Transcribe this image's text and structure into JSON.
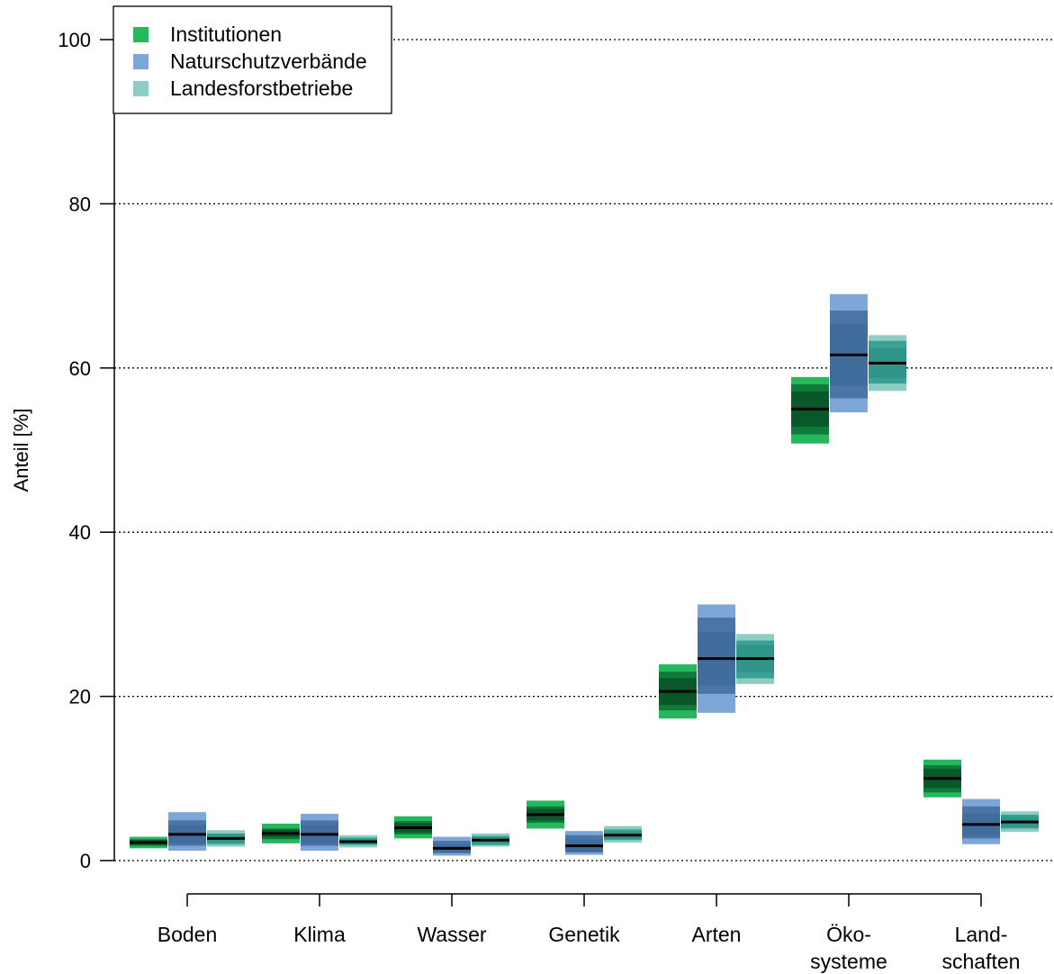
{
  "chart_data": {
    "type": "box",
    "ylabel": "Anteil [%]",
    "ylim": [
      0,
      100
    ],
    "yticks": [
      0,
      20,
      40,
      60,
      80,
      100
    ],
    "grid": "horizontal dotted",
    "legend_position": "top-left",
    "categories": [
      [
        "Boden"
      ],
      [
        "Klima"
      ],
      [
        "Wasser"
      ],
      [
        "Genetik"
      ],
      [
        "Arten"
      ],
      [
        "Öko-",
        "systeme"
      ],
      [
        "Land-",
        "schaften"
      ]
    ],
    "series": [
      {
        "name": "Institutionen",
        "color_outer": "#25b85c",
        "color_inner": "#0f7a3a",
        "color_core": "#063d1c",
        "boxes": [
          {
            "min": 1.5,
            "q1": 1.8,
            "median": 2.2,
            "q3": 2.6,
            "max": 2.9
          },
          {
            "min": 2.1,
            "q1": 2.6,
            "median": 3.3,
            "q3": 3.9,
            "max": 4.5
          },
          {
            "min": 2.7,
            "q1": 3.2,
            "median": 4.0,
            "q3": 4.8,
            "max": 5.4
          },
          {
            "min": 3.9,
            "q1": 4.6,
            "median": 5.6,
            "q3": 6.6,
            "max": 7.3
          },
          {
            "min": 17.3,
            "q1": 18.3,
            "median": 20.6,
            "q3": 23.0,
            "max": 23.9
          },
          {
            "min": 50.8,
            "q1": 51.9,
            "median": 55.0,
            "q3": 58.0,
            "max": 58.9
          },
          {
            "min": 7.7,
            "q1": 8.3,
            "median": 10.0,
            "q3": 11.6,
            "max": 12.3
          }
        ]
      },
      {
        "name": "Naturschutzverbände",
        "color_outer": "#7ea6d6",
        "color_inner": "#4a75a6",
        "color_core": "#3a6694",
        "boxes": [
          {
            "min": 1.2,
            "q1": 1.8,
            "median": 3.2,
            "q3": 4.9,
            "max": 5.9
          },
          {
            "min": 1.2,
            "q1": 1.8,
            "median": 3.2,
            "q3": 4.9,
            "max": 5.7
          },
          {
            "min": 0.6,
            "q1": 0.9,
            "median": 1.5,
            "q3": 2.4,
            "max": 2.9
          },
          {
            "min": 0.7,
            "q1": 1.0,
            "median": 1.8,
            "q3": 3.1,
            "max": 3.6
          },
          {
            "min": 18.0,
            "q1": 20.3,
            "median": 24.6,
            "q3": 29.6,
            "max": 31.2
          },
          {
            "min": 54.6,
            "q1": 56.3,
            "median": 61.6,
            "q3": 67.0,
            "max": 69.0
          },
          {
            "min": 2.0,
            "q1": 2.7,
            "median": 4.4,
            "q3": 6.6,
            "max": 7.5
          }
        ]
      },
      {
        "name": "Landesforstbetriebe",
        "color_outer": "#8ecdc3",
        "color_inner": "#3aa196",
        "color_core": "#2a8b80",
        "boxes": [
          {
            "min": 1.7,
            "q1": 2.0,
            "median": 2.7,
            "q3": 3.3,
            "max": 3.7
          },
          {
            "min": 1.6,
            "q1": 1.9,
            "median": 2.3,
            "q3": 2.8,
            "max": 3.1
          },
          {
            "min": 1.7,
            "q1": 1.9,
            "median": 2.5,
            "q3": 3.0,
            "max": 3.3
          },
          {
            "min": 2.2,
            "q1": 2.5,
            "median": 3.1,
            "q3": 3.8,
            "max": 4.2
          },
          {
            "min": 21.5,
            "q1": 22.2,
            "median": 24.6,
            "q3": 26.8,
            "max": 27.6
          },
          {
            "min": 57.2,
            "q1": 58.1,
            "median": 60.6,
            "q3": 63.3,
            "max": 64.0
          },
          {
            "min": 3.5,
            "q1": 3.9,
            "median": 4.7,
            "q3": 5.6,
            "max": 6.0
          }
        ]
      }
    ]
  }
}
